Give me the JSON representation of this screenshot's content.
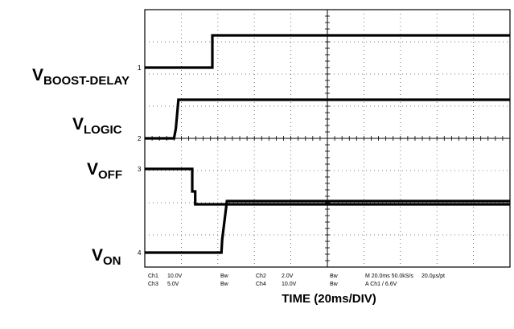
{
  "chart_data": {
    "type": "line",
    "title": "",
    "xlabel": "TIME (20ms/DIV)",
    "time_per_div_ms": 20,
    "grid": true,
    "divisions": {
      "x": 10,
      "y": 8
    },
    "series": [
      {
        "name": "V_BOOST-DELAY",
        "label_main": "V",
        "label_sub": "BOOST-DELAY",
        "marker": "1",
        "x_div": [
          0,
          1.85,
          1.85,
          10
        ],
        "level_div": [
          0,
          0,
          1.0,
          1.0
        ],
        "baseline_div": 6.2
      },
      {
        "name": "V_LOGIC",
        "label_main": "V",
        "label_sub": "LOGIC",
        "marker": "2",
        "x_div": [
          0,
          0.8,
          0.85,
          0.92,
          10
        ],
        "level_div": [
          0,
          0,
          0.3,
          1.2,
          1.2
        ],
        "baseline_div": 4.0
      },
      {
        "name": "V_OFF",
        "label_main": "V",
        "label_sub": "OFF",
        "marker": "3",
        "x_div": [
          0,
          1.3,
          1.3,
          1.38,
          1.38,
          10
        ],
        "level_div": [
          0,
          0,
          -0.7,
          -0.7,
          -1.1,
          -1.1
        ],
        "baseline_div": 3.05
      },
      {
        "name": "V_ON",
        "label_main": "V",
        "label_sub": "ON",
        "marker": "4",
        "x_div": [
          0,
          2.1,
          2.12,
          2.25,
          10
        ],
        "level_div": [
          0,
          0,
          0.4,
          1.6,
          1.6
        ],
        "baseline_div": 0.45
      }
    ],
    "readout": {
      "row1": [
        "Ch1",
        "10.0V",
        "Bw",
        "Ch2",
        "2.0V",
        "Bw",
        "M 20.0ms 50.0kS/s",
        "20.0µs/pt"
      ],
      "row2": [
        "Ch3",
        "5.0V",
        "Bw",
        "Ch4",
        "10.0V",
        "Bw",
        "A  Ch1  /  6.6V"
      ]
    }
  }
}
